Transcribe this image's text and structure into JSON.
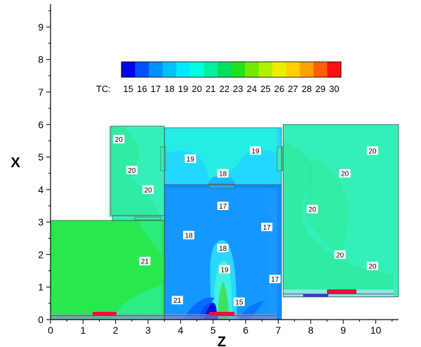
{
  "chart_data": {
    "type": "contour",
    "xlabel": "Z",
    "ylabel": "X",
    "xlim": [
      0,
      10.7
    ],
    "ylim": [
      0,
      9.7
    ],
    "x_ticks": [
      "0",
      "1",
      "2",
      "3",
      "4",
      "5",
      "6",
      "7",
      "8",
      "9",
      "10"
    ],
    "y_ticks": [
      "0",
      "1",
      "2",
      "3",
      "4",
      "5",
      "6",
      "7",
      "8",
      "9"
    ],
    "colorbar": {
      "label": "TC:",
      "levels": [
        "15",
        "16",
        "17",
        "18",
        "19",
        "20",
        "21",
        "22",
        "23",
        "24",
        "25",
        "26",
        "27",
        "28",
        "29",
        "30"
      ],
      "colors": [
        "#0000e8",
        "#0050ff",
        "#0090ff",
        "#00c0ff",
        "#00e8ff",
        "#00ffe0",
        "#00f0a0",
        "#00e060",
        "#20e020",
        "#70e800",
        "#b0f000",
        "#e8f000",
        "#ffd000",
        "#ffa000",
        "#ff6000",
        "#ff1010"
      ]
    },
    "regions": [
      {
        "z": [
          0,
          3.5
        ],
        "x": [
          0,
          3.05
        ],
        "fill": "#28e850"
      },
      {
        "z": [
          1.9,
          3.5
        ],
        "x": [
          3.05,
          3.2
        ],
        "fill": "#34f0b8"
      },
      {
        "z": [
          1.85,
          3.5
        ],
        "x": [
          3.2,
          5.95
        ],
        "fill": "#34f0b8"
      },
      {
        "z": [
          3.5,
          7.1
        ],
        "x": [
          0,
          4.15
        ],
        "fill": "#0a8cff"
      },
      {
        "z": [
          3.5,
          7.1
        ],
        "x": [
          4.15,
          5.9
        ],
        "fill": "#22d8ff"
      },
      {
        "z": [
          7.15,
          10.7
        ],
        "x": [
          0.7,
          6.0
        ],
        "fill": "#34f0b8"
      }
    ],
    "contour_labels": [
      {
        "z": 2.1,
        "x": 5.55,
        "text": "20"
      },
      {
        "z": 2.5,
        "x": 4.6,
        "text": "20"
      },
      {
        "z": 3.0,
        "x": 4.0,
        "text": "20"
      },
      {
        "z": 2.9,
        "x": 1.8,
        "text": "21"
      },
      {
        "z": 3.9,
        "x": 0.6,
        "text": "21"
      },
      {
        "z": 4.3,
        "x": 4.95,
        "text": "19"
      },
      {
        "z": 6.3,
        "x": 5.2,
        "text": "19"
      },
      {
        "z": 5.3,
        "x": 4.5,
        "text": "18"
      },
      {
        "z": 5.3,
        "x": 3.5,
        "text": "17"
      },
      {
        "z": 4.25,
        "x": 2.6,
        "text": "18"
      },
      {
        "z": 6.65,
        "x": 2.85,
        "text": "17"
      },
      {
        "z": 5.3,
        "x": 2.2,
        "text": "18"
      },
      {
        "z": 5.35,
        "x": 1.55,
        "text": "19"
      },
      {
        "z": 6.9,
        "x": 1.25,
        "text": "17"
      },
      {
        "z": 5.8,
        "x": 0.55,
        "text": "15"
      },
      {
        "z": 9.9,
        "x": 5.2,
        "text": "20"
      },
      {
        "z": 9.05,
        "x": 4.5,
        "text": "20"
      },
      {
        "z": 8.05,
        "x": 3.4,
        "text": "20"
      },
      {
        "z": 8.9,
        "x": 2.0,
        "text": "20"
      },
      {
        "z": 9.9,
        "x": 1.65,
        "text": "20"
      }
    ],
    "grid": false,
    "legend": "top"
  }
}
